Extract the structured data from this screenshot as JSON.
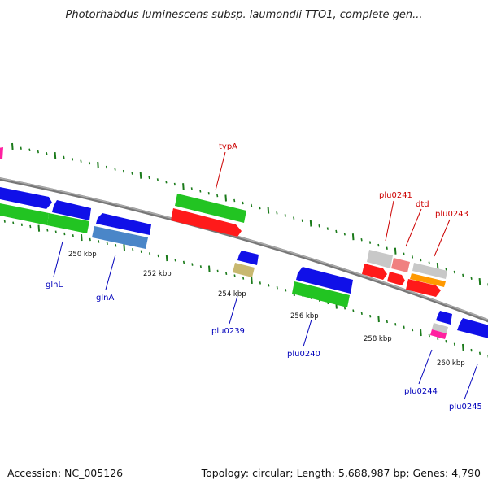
{
  "title": "Photorhabdus luminescens subsp. laumondii TTO1, complete gen...",
  "footer": {
    "accession": "Accession: NC_005126",
    "summary": "Topology: circular; Length: 5,688,987 bp; Genes: 4,790"
  },
  "scale_labels": [
    "250 kbp",
    "252 kbp",
    "254 kbp",
    "256 kbp",
    "258 kbp",
    "260 kbp"
  ],
  "gene_labels": {
    "typA": "typA",
    "plu0241": "plu0241",
    "dtd": "dtd",
    "plu0243": "plu0243",
    "glnL": "glnL",
    "glnA": "glnA",
    "plu0239": "plu0239",
    "plu0240": "plu0240",
    "plu0244": "plu0244",
    "plu0245": "plu0245"
  },
  "colors": {
    "forward_gene": "#22c422",
    "forward_cds": "#ff1a1a",
    "reverse_gene": "#1010e8",
    "reverse_alt": "#4a86c8",
    "pseudo_grey": "#c8c8c8",
    "pink": "#f08080",
    "orange": "#ff9900",
    "olive": "#c8b870",
    "magenta": "#ff20a0",
    "backbone": "#888888",
    "tick_green": "#1a7a1a",
    "label_red": "#cc0000",
    "label_blue": "#0000bb"
  }
}
